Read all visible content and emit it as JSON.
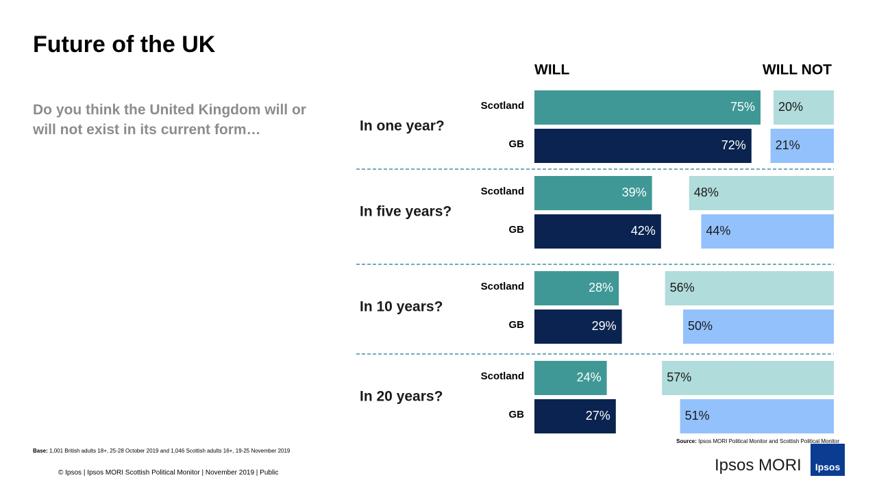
{
  "title": "Future of the UK",
  "question": "Do you think the United Kingdom will or will not exist in its current form…",
  "chart_data": {
    "type": "bar",
    "groups": [
      "In one year?",
      "In five years?",
      "In 10 years?",
      "In 20 years?"
    ],
    "rows": [
      "Scotland",
      "GB"
    ],
    "xlim": [
      0,
      100
    ],
    "series": [
      {
        "name": "WILL",
        "colors": [
          "#3f9896",
          "#0a2350"
        ],
        "values": [
          [
            75,
            72
          ],
          [
            39,
            42
          ],
          [
            28,
            29
          ],
          [
            24,
            27
          ]
        ],
        "value_labels": [
          [
            "75%",
            "72%"
          ],
          [
            "39%",
            "42%"
          ],
          [
            "28%",
            "29%"
          ],
          [
            "24%",
            "27%"
          ]
        ]
      },
      {
        "name": "WILL NOT",
        "colors": [
          "#b0dcdb",
          "#93c1fb"
        ],
        "values": [
          [
            20,
            21
          ],
          [
            48,
            44
          ],
          [
            56,
            50
          ],
          [
            57,
            51
          ]
        ],
        "value_labels": [
          [
            "20%",
            "21%"
          ],
          [
            "48%",
            "44%"
          ],
          [
            "56%",
            "50%"
          ],
          [
            "57%",
            "51%"
          ]
        ]
      }
    ]
  },
  "footer": {
    "base_label": "Base:",
    "base": "1,001 British adults 18+, 25-28 October 2019 and 1,046 Scottish adults 16+, 19-25 November 2019",
    "source_label": "Source:",
    "source": "Ipsos MORI Political Monitor and Scottish Political Monitor",
    "copyright": "© Ipsos | Ipsos MORI Scottish Political Monitor | November 2019 | Public",
    "brand": "Ipsos MORI",
    "logo": "Ipsos"
  }
}
